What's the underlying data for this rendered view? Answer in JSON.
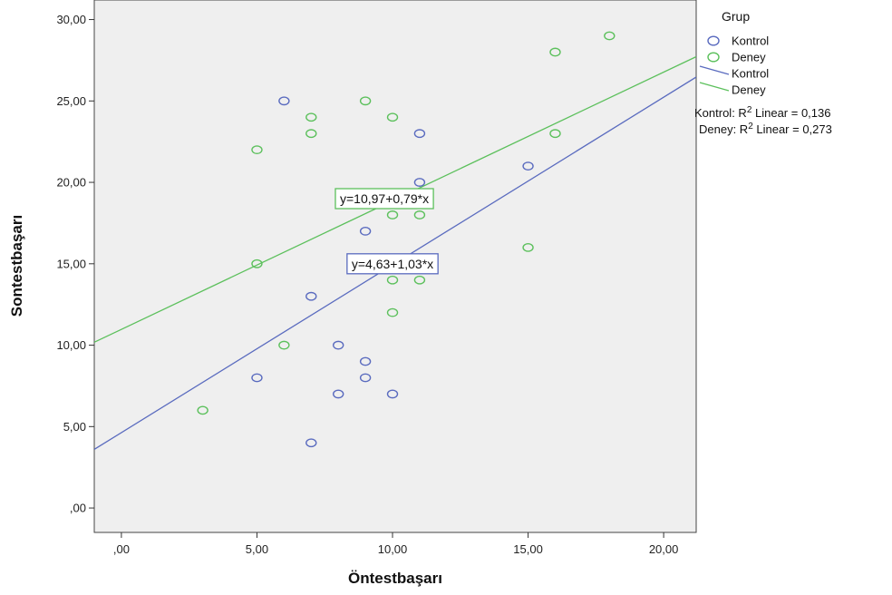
{
  "chart_data": {
    "type": "scatter",
    "xlabel": "Öntestbaşarı",
    "ylabel": "Sontestbaşarı",
    "xlim": [
      -1,
      21.2
    ],
    "ylim": [
      -1.5,
      31.2
    ],
    "x_ticks": [
      0,
      5,
      10,
      15,
      20
    ],
    "x_tick_labels": [
      ",00",
      "5,00",
      "10,00",
      "15,00",
      "20,00"
    ],
    "y_ticks": [
      0,
      5,
      10,
      15,
      20,
      25,
      30
    ],
    "y_tick_labels": [
      ",00",
      "5,00",
      "10,00",
      "15,00",
      "20,00",
      "25,00",
      "30,00"
    ],
    "grid": false,
    "legend": {
      "title": "Grup",
      "placement": "right",
      "point_labels": [
        "Kontrol",
        "Deney"
      ],
      "line_labels": [
        "Kontrol",
        "Deney"
      ],
      "r2_lines": [
        {
          "prefix": "Kontrol: R",
          "sup": "2",
          "suffix": " Linear = 0,136"
        },
        {
          "prefix": "Deney: R",
          "sup": "2",
          "suffix": " Linear = 0,273"
        }
      ]
    },
    "series": [
      {
        "name": "Kontrol",
        "color": "#5a6bbf",
        "points": [
          [
            6,
            25
          ],
          [
            11,
            23
          ],
          [
            11,
            20
          ],
          [
            15,
            21
          ],
          [
            9,
            17
          ],
          [
            7,
            13
          ],
          [
            8,
            10
          ],
          [
            9,
            9
          ],
          [
            9,
            8
          ],
          [
            5,
            8
          ],
          [
            8,
            7
          ],
          [
            10,
            7
          ],
          [
            7,
            4
          ]
        ],
        "fit": {
          "intercept": 4.63,
          "slope": 1.03,
          "equation": "y=4,63+1,03*x",
          "label_at": [
            10,
            15
          ]
        }
      },
      {
        "name": "Deney",
        "color": "#5cc05c",
        "points": [
          [
            18,
            29
          ],
          [
            16,
            28
          ],
          [
            9,
            25
          ],
          [
            7,
            24
          ],
          [
            10,
            24
          ],
          [
            7,
            23
          ],
          [
            16,
            23
          ],
          [
            5,
            22
          ],
          [
            10,
            18
          ],
          [
            11,
            18
          ],
          [
            15,
            16
          ],
          [
            5,
            15
          ],
          [
            10,
            14
          ],
          [
            11,
            14
          ],
          [
            10,
            12
          ],
          [
            6,
            10
          ],
          [
            3,
            6
          ]
        ],
        "fit": {
          "intercept": 10.97,
          "slope": 0.79,
          "equation": "y=10,97+0,79*x",
          "label_at": [
            9.7,
            19
          ]
        }
      }
    ]
  }
}
